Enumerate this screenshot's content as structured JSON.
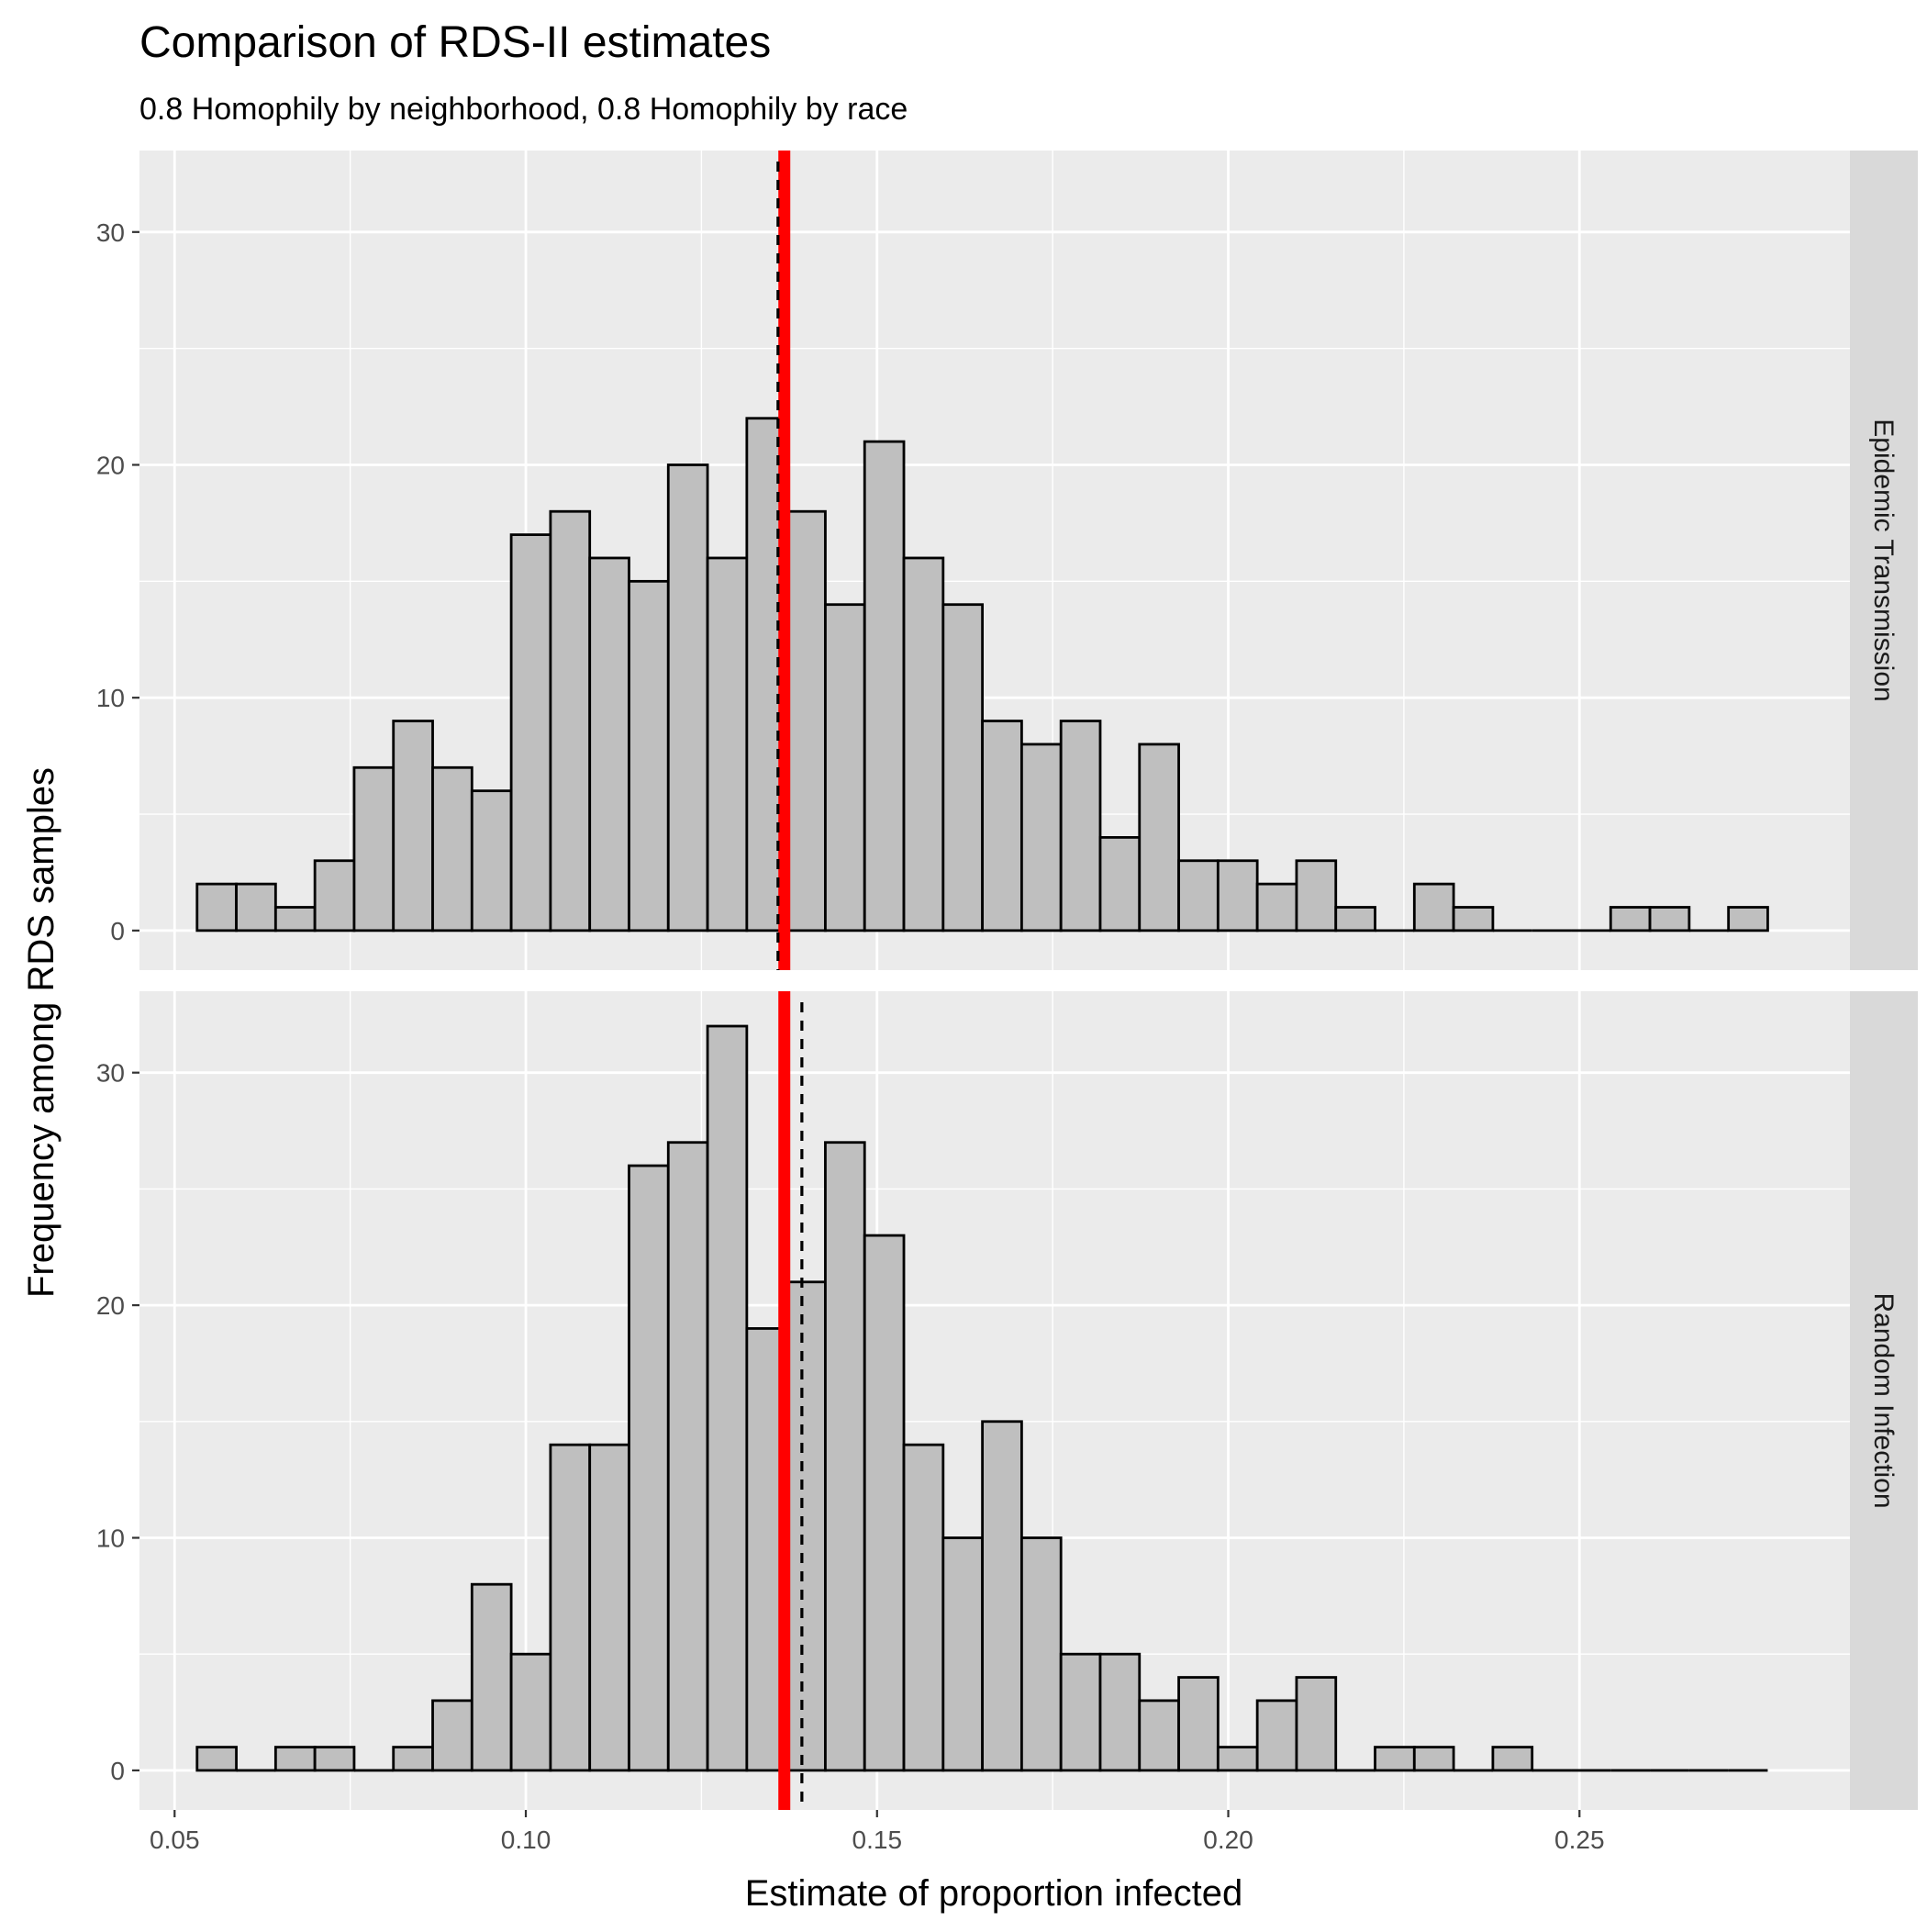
{
  "chart_data": {
    "type": "bar",
    "title": "Comparison of RDS-II estimates",
    "subtitle": "0.8 Homophily by neighborhood, 0.8 Homophily by race",
    "xlabel": "Estimate of proportion infected",
    "ylabel": "Frequency among RDS samples",
    "xlim": [
      0.045,
      0.2885
    ],
    "ylim": [
      -1.7,
      33.5
    ],
    "x_ticks": [
      0.05,
      0.1,
      0.15,
      0.2,
      0.25
    ],
    "x_tick_labels": [
      "0.05",
      "0.10",
      "0.15",
      "0.20",
      "0.25"
    ],
    "y_ticks": [
      0,
      10,
      20,
      30
    ],
    "y_tick_labels": [
      "0",
      "10",
      "20",
      "30"
    ],
    "grid": true,
    "bin_width": 0.00559,
    "bin_start": 0.0532,
    "bar_fill": "#bfbfbf",
    "bar_stroke": "#000000",
    "reference_line_color": "#ff0000",
    "mean_line_color": "#000000",
    "panels": [
      {
        "strip_label": "Epidemic Transmission",
        "counts": [
          2,
          2,
          1,
          3,
          7,
          9,
          7,
          6,
          17,
          18,
          16,
          15,
          20,
          16,
          22,
          18,
          14,
          21,
          16,
          14,
          9,
          8,
          9,
          4,
          8,
          3,
          3,
          2,
          3,
          1,
          0,
          2,
          1,
          0,
          0,
          0,
          1,
          1,
          0,
          1
        ],
        "true_value": 0.1368,
        "mean_estimate": 0.1359
      },
      {
        "strip_label": "Random Infection",
        "counts": [
          1,
          0,
          1,
          1,
          0,
          1,
          3,
          8,
          5,
          14,
          14,
          26,
          27,
          32,
          19,
          21,
          27,
          23,
          14,
          10,
          15,
          10,
          5,
          5,
          3,
          4,
          1,
          3,
          4,
          0,
          1,
          1,
          0,
          1,
          0,
          0,
          0,
          0,
          0,
          0
        ],
        "true_value": 0.1368,
        "mean_estimate": 0.1393
      }
    ]
  }
}
